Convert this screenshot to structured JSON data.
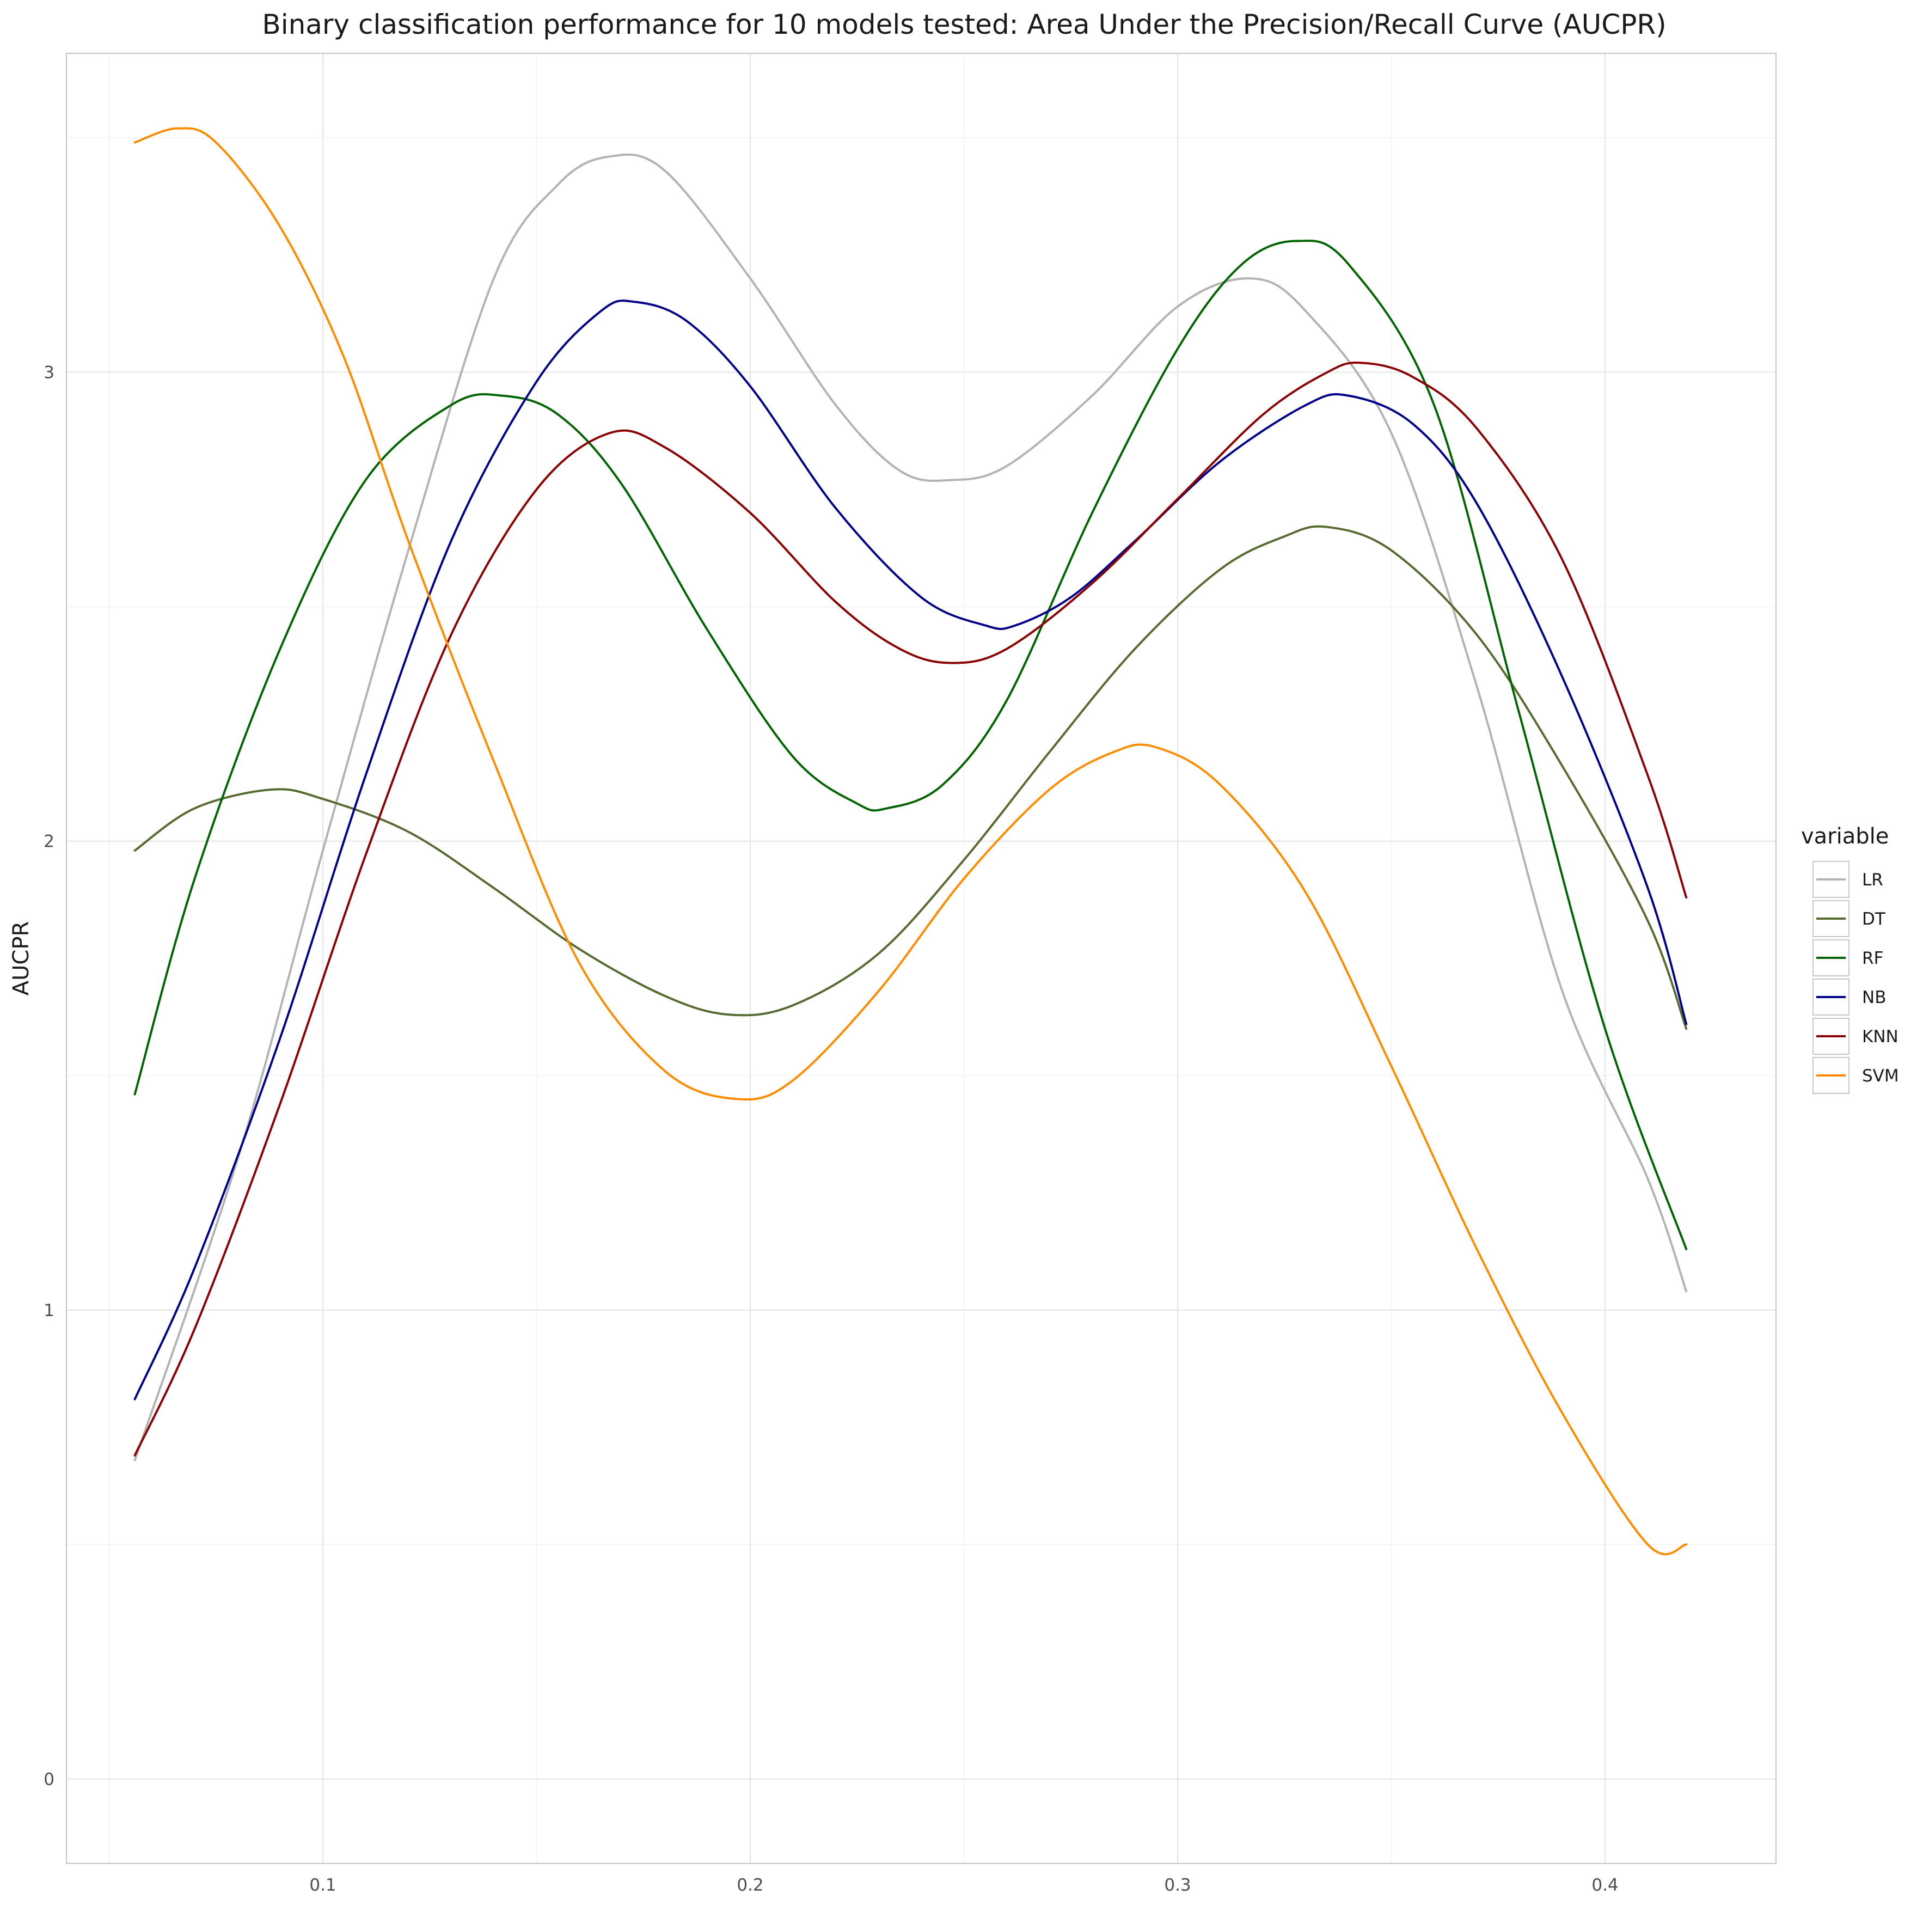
{
  "chart_data": {
    "type": "line",
    "title": "Binary classification performance for 10 models tested: Area Under the Precision/Recall Curve (AUCPR)",
    "xlabel": "",
    "ylabel": "AUCPR",
    "xlim": [
      0.04,
      0.44
    ],
    "ylim": [
      -0.18,
      3.68
    ],
    "x_ticks": [
      0.1,
      0.2,
      0.3,
      0.4
    ],
    "x_tick_labels": [
      "0.1",
      "0.2",
      "0.3",
      "0.4"
    ],
    "x_minor_ticks": [
      0.05,
      0.15,
      0.25,
      0.35
    ],
    "y_ticks": [
      0,
      1,
      2,
      3
    ],
    "y_tick_labels": [
      "0",
      "1",
      "2",
      "3"
    ],
    "y_minor_ticks": [
      0.5,
      1.5,
      2.5,
      3.5
    ],
    "grid": true,
    "legend": {
      "title": "variable",
      "position": "right"
    },
    "series": [
      {
        "name": "LR",
        "color": "#b3b3b3",
        "points": [
          [
            0.056,
            0.68
          ],
          [
            0.08,
            1.32
          ],
          [
            0.1,
            1.98
          ],
          [
            0.12,
            2.62
          ],
          [
            0.14,
            3.2
          ],
          [
            0.155,
            3.4
          ],
          [
            0.167,
            3.46
          ],
          [
            0.18,
            3.43
          ],
          [
            0.2,
            3.2
          ],
          [
            0.22,
            2.93
          ],
          [
            0.235,
            2.79
          ],
          [
            0.247,
            2.77
          ],
          [
            0.26,
            2.8
          ],
          [
            0.28,
            2.95
          ],
          [
            0.3,
            3.14
          ],
          [
            0.317,
            3.2
          ],
          [
            0.33,
            3.13
          ],
          [
            0.35,
            2.87
          ],
          [
            0.37,
            2.33
          ],
          [
            0.39,
            1.68
          ],
          [
            0.41,
            1.28
          ],
          [
            0.419,
            1.04
          ]
        ]
      },
      {
        "name": "DT",
        "color": "#556b2f",
        "points": [
          [
            0.056,
            1.98
          ],
          [
            0.07,
            2.07
          ],
          [
            0.088,
            2.11
          ],
          [
            0.1,
            2.09
          ],
          [
            0.12,
            2.02
          ],
          [
            0.14,
            1.9
          ],
          [
            0.16,
            1.77
          ],
          [
            0.18,
            1.67
          ],
          [
            0.195,
            1.63
          ],
          [
            0.21,
            1.65
          ],
          [
            0.23,
            1.76
          ],
          [
            0.25,
            1.96
          ],
          [
            0.27,
            2.19
          ],
          [
            0.29,
            2.41
          ],
          [
            0.31,
            2.58
          ],
          [
            0.325,
            2.65
          ],
          [
            0.335,
            2.67
          ],
          [
            0.35,
            2.62
          ],
          [
            0.37,
            2.44
          ],
          [
            0.39,
            2.16
          ],
          [
            0.41,
            1.83
          ],
          [
            0.419,
            1.6
          ]
        ]
      },
      {
        "name": "RF",
        "color": "#006400",
        "points": [
          [
            0.056,
            1.46
          ],
          [
            0.07,
            1.92
          ],
          [
            0.09,
            2.41
          ],
          [
            0.11,
            2.77
          ],
          [
            0.13,
            2.93
          ],
          [
            0.142,
            2.95
          ],
          [
            0.155,
            2.91
          ],
          [
            0.17,
            2.76
          ],
          [
            0.19,
            2.45
          ],
          [
            0.21,
            2.18
          ],
          [
            0.225,
            2.08
          ],
          [
            0.232,
            2.07
          ],
          [
            0.245,
            2.12
          ],
          [
            0.26,
            2.3
          ],
          [
            0.28,
            2.7
          ],
          [
            0.3,
            3.05
          ],
          [
            0.315,
            3.23
          ],
          [
            0.328,
            3.28
          ],
          [
            0.34,
            3.23
          ],
          [
            0.36,
            2.93
          ],
          [
            0.38,
            2.27
          ],
          [
            0.4,
            1.6
          ],
          [
            0.419,
            1.13
          ]
        ]
      },
      {
        "name": "NB",
        "color": "#00008b",
        "points": [
          [
            0.056,
            0.81
          ],
          [
            0.07,
            1.09
          ],
          [
            0.09,
            1.58
          ],
          [
            0.11,
            2.14
          ],
          [
            0.13,
            2.64
          ],
          [
            0.15,
            2.98
          ],
          [
            0.165,
            3.13
          ],
          [
            0.173,
            3.15
          ],
          [
            0.185,
            3.11
          ],
          [
            0.2,
            2.97
          ],
          [
            0.22,
            2.71
          ],
          [
            0.24,
            2.52
          ],
          [
            0.255,
            2.46
          ],
          [
            0.262,
            2.46
          ],
          [
            0.275,
            2.52
          ],
          [
            0.29,
            2.64
          ],
          [
            0.31,
            2.81
          ],
          [
            0.33,
            2.93
          ],
          [
            0.34,
            2.95
          ],
          [
            0.355,
            2.89
          ],
          [
            0.37,
            2.72
          ],
          [
            0.39,
            2.35
          ],
          [
            0.41,
            1.9
          ],
          [
            0.419,
            1.61
          ]
        ]
      },
      {
        "name": "KNN",
        "color": "#8b0000",
        "points": [
          [
            0.056,
            0.69
          ],
          [
            0.07,
            0.96
          ],
          [
            0.09,
            1.44
          ],
          [
            0.11,
            1.97
          ],
          [
            0.13,
            2.44
          ],
          [
            0.15,
            2.75
          ],
          [
            0.167,
            2.87
          ],
          [
            0.18,
            2.84
          ],
          [
            0.2,
            2.7
          ],
          [
            0.22,
            2.51
          ],
          [
            0.235,
            2.41
          ],
          [
            0.247,
            2.38
          ],
          [
            0.26,
            2.41
          ],
          [
            0.28,
            2.55
          ],
          [
            0.3,
            2.73
          ],
          [
            0.32,
            2.91
          ],
          [
            0.335,
            3
          ],
          [
            0.343,
            3.02
          ],
          [
            0.355,
            2.99
          ],
          [
            0.37,
            2.88
          ],
          [
            0.39,
            2.6
          ],
          [
            0.41,
            2.14
          ],
          [
            0.419,
            1.88
          ]
        ]
      },
      {
        "name": "SVM",
        "color": "#ff8c00",
        "points": [
          [
            0.056,
            3.49
          ],
          [
            0.066,
            3.52
          ],
          [
            0.075,
            3.49
          ],
          [
            0.09,
            3.31
          ],
          [
            0.105,
            3.03
          ],
          [
            0.12,
            2.64
          ],
          [
            0.14,
            2.17
          ],
          [
            0.16,
            1.74
          ],
          [
            0.18,
            1.51
          ],
          [
            0.197,
            1.45
          ],
          [
            0.21,
            1.49
          ],
          [
            0.23,
            1.68
          ],
          [
            0.25,
            1.92
          ],
          [
            0.27,
            2.11
          ],
          [
            0.285,
            2.19
          ],
          [
            0.295,
            2.2
          ],
          [
            0.31,
            2.12
          ],
          [
            0.33,
            1.89
          ],
          [
            0.35,
            1.52
          ],
          [
            0.37,
            1.13
          ],
          [
            0.39,
            0.78
          ],
          [
            0.41,
            0.5
          ],
          [
            0.419,
            0.5
          ]
        ]
      }
    ]
  }
}
